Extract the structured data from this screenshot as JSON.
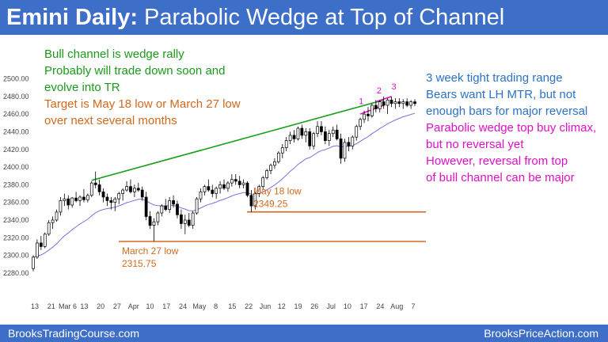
{
  "title": {
    "bold": "Emini Daily:",
    "rest": " Parabolic Wedge at Top of Channel"
  },
  "footer": {
    "left": "BrooksTradingCourse.com",
    "right": "BrooksPriceAction.com"
  },
  "notes_left": {
    "green": [
      "Bull channel is wedge rally",
      "Probably will trade down soon and",
      "evolve into TR"
    ],
    "orange": [
      "Target is May 18 low or March 27 low",
      "over next several months"
    ]
  },
  "notes_right": {
    "blue": [
      "3 week tight trading range",
      "Bears want LH MTR, but not",
      "enough bars for major reversal"
    ],
    "magenta": [
      "Parabolic wedge top buy climax,",
      "but no reversal yet",
      "However, reversal from top",
      "of bull channel can be major"
    ]
  },
  "annotations": {
    "may18": [
      "May 18 low",
      "2349.25"
    ],
    "mar27": [
      "March 27 low",
      "2315.75"
    ],
    "wedge_labels": [
      "1",
      "2",
      "3"
    ]
  },
  "colors": {
    "header": "#3d6ec8",
    "bull_candle": "#ffffff",
    "bear_candle": "#000000",
    "ema": "#7b6fe0",
    "trendline": "#16a016",
    "support": "#d2691e",
    "wedge": "#e010c8"
  },
  "chart_data": {
    "type": "candlestick",
    "y_ticks": [
      "2280.00",
      "2300.00",
      "2320.00",
      "2340.00",
      "2360.00",
      "2380.00",
      "2400.00",
      "2420.00",
      "2440.00",
      "2460.00",
      "2480.00",
      "2500.00"
    ],
    "ylim": [
      2270,
      2505
    ],
    "x_ticks": [
      "13",
      "21",
      "Mar 6",
      "13",
      "20",
      "27",
      "Apr",
      "10",
      "17",
      "24",
      "May",
      "8",
      "15",
      "22",
      "Jun",
      "12",
      "19",
      "26",
      "Jul",
      "10",
      "17",
      "24",
      "Aug",
      "7"
    ],
    "support_levels": [
      2349.25,
      2315.75
    ],
    "candles": [
      [
        2285,
        2300,
        2282,
        2298
      ],
      [
        2298,
        2318,
        2296,
        2314
      ],
      [
        2314,
        2322,
        2306,
        2310
      ],
      [
        2310,
        2326,
        2308,
        2324
      ],
      [
        2324,
        2340,
        2322,
        2337
      ],
      [
        2337,
        2344,
        2330,
        2340
      ],
      [
        2340,
        2352,
        2338,
        2349
      ],
      [
        2349,
        2366,
        2345,
        2362
      ],
      [
        2362,
        2370,
        2356,
        2364
      ],
      [
        2364,
        2368,
        2352,
        2357
      ],
      [
        2357,
        2366,
        2354,
        2365
      ],
      [
        2365,
        2372,
        2360,
        2362
      ],
      [
        2362,
        2368,
        2356,
        2366
      ],
      [
        2366,
        2375,
        2360,
        2363
      ],
      [
        2363,
        2370,
        2360,
        2368
      ],
      [
        2368,
        2384,
        2366,
        2382
      ],
      [
        2382,
        2395,
        2376,
        2380
      ],
      [
        2380,
        2386,
        2368,
        2372
      ],
      [
        2372,
        2376,
        2360,
        2366
      ],
      [
        2366,
        2370,
        2356,
        2362
      ],
      [
        2362,
        2366,
        2352,
        2360
      ],
      [
        2360,
        2366,
        2350,
        2364
      ],
      [
        2364,
        2372,
        2358,
        2370
      ],
      [
        2370,
        2376,
        2362,
        2374
      ],
      [
        2374,
        2384,
        2372,
        2378
      ],
      [
        2378,
        2386,
        2370,
        2372
      ],
      [
        2372,
        2380,
        2366,
        2376
      ],
      [
        2376,
        2382,
        2372,
        2374
      ],
      [
        2374,
        2378,
        2362,
        2366
      ],
      [
        2366,
        2372,
        2340,
        2344
      ],
      [
        2344,
        2350,
        2330,
        2334
      ],
      [
        2334,
        2342,
        2316,
        2338
      ],
      [
        2338,
        2350,
        2334,
        2348
      ],
      [
        2348,
        2358,
        2344,
        2356
      ],
      [
        2356,
        2364,
        2350,
        2352
      ],
      [
        2352,
        2366,
        2348,
        2362
      ],
      [
        2362,
        2368,
        2354,
        2358
      ],
      [
        2358,
        2362,
        2342,
        2346
      ],
      [
        2346,
        2352,
        2330,
        2336
      ],
      [
        2336,
        2346,
        2324,
        2340
      ],
      [
        2340,
        2348,
        2332,
        2334
      ],
      [
        2334,
        2350,
        2330,
        2348
      ],
      [
        2348,
        2366,
        2346,
        2364
      ],
      [
        2364,
        2376,
        2360,
        2372
      ],
      [
        2372,
        2380,
        2368,
        2378
      ],
      [
        2378,
        2386,
        2372,
        2374
      ],
      [
        2374,
        2380,
        2366,
        2370
      ],
      [
        2370,
        2378,
        2364,
        2376
      ],
      [
        2376,
        2384,
        2370,
        2380
      ],
      [
        2380,
        2386,
        2374,
        2376
      ],
      [
        2376,
        2384,
        2372,
        2382
      ],
      [
        2382,
        2392,
        2378,
        2386
      ],
      [
        2386,
        2392,
        2380,
        2384
      ],
      [
        2384,
        2390,
        2376,
        2380
      ],
      [
        2380,
        2386,
        2376,
        2382
      ],
      [
        2382,
        2384,
        2366,
        2368
      ],
      [
        2368,
        2374,
        2349,
        2356
      ],
      [
        2356,
        2372,
        2352,
        2370
      ],
      [
        2370,
        2380,
        2366,
        2378
      ],
      [
        2378,
        2390,
        2374,
        2388
      ],
      [
        2388,
        2398,
        2386,
        2396
      ],
      [
        2396,
        2404,
        2392,
        2402
      ],
      [
        2402,
        2410,
        2398,
        2406
      ],
      [
        2406,
        2418,
        2404,
        2416
      ],
      [
        2416,
        2426,
        2410,
        2422
      ],
      [
        2422,
        2434,
        2418,
        2430
      ],
      [
        2430,
        2440,
        2426,
        2436
      ],
      [
        2436,
        2442,
        2428,
        2432
      ],
      [
        2432,
        2446,
        2430,
        2444
      ],
      [
        2444,
        2448,
        2432,
        2436
      ],
      [
        2436,
        2444,
        2428,
        2440
      ],
      [
        2440,
        2444,
        2420,
        2424
      ],
      [
        2424,
        2440,
        2420,
        2438
      ],
      [
        2438,
        2452,
        2434,
        2446
      ],
      [
        2446,
        2452,
        2436,
        2440
      ],
      [
        2440,
        2446,
        2426,
        2430
      ],
      [
        2430,
        2442,
        2424,
        2438
      ],
      [
        2438,
        2446,
        2434,
        2442
      ],
      [
        2442,
        2448,
        2430,
        2432
      ],
      [
        2432,
        2438,
        2404,
        2410
      ],
      [
        2410,
        2432,
        2406,
        2428
      ],
      [
        2428,
        2434,
        2418,
        2424
      ],
      [
        2424,
        2436,
        2420,
        2434
      ],
      [
        2434,
        2448,
        2430,
        2446
      ],
      [
        2446,
        2456,
        2442,
        2454
      ],
      [
        2454,
        2464,
        2450,
        2460
      ],
      [
        2460,
        2468,
        2452,
        2458
      ],
      [
        2458,
        2472,
        2456,
        2470
      ],
      [
        2470,
        2476,
        2462,
        2466
      ],
      [
        2466,
        2476,
        2462,
        2474
      ],
      [
        2474,
        2480,
        2466,
        2470
      ],
      [
        2470,
        2478,
        2460,
        2476
      ],
      [
        2476,
        2480,
        2468,
        2472
      ],
      [
        2472,
        2478,
        2466,
        2474
      ],
      [
        2474,
        2478,
        2468,
        2472
      ],
      [
        2472,
        2477,
        2466,
        2474
      ],
      [
        2474,
        2478,
        2468,
        2470
      ],
      [
        2470,
        2476,
        2466,
        2474
      ],
      [
        2474,
        2477,
        2469,
        2472
      ]
    ]
  }
}
